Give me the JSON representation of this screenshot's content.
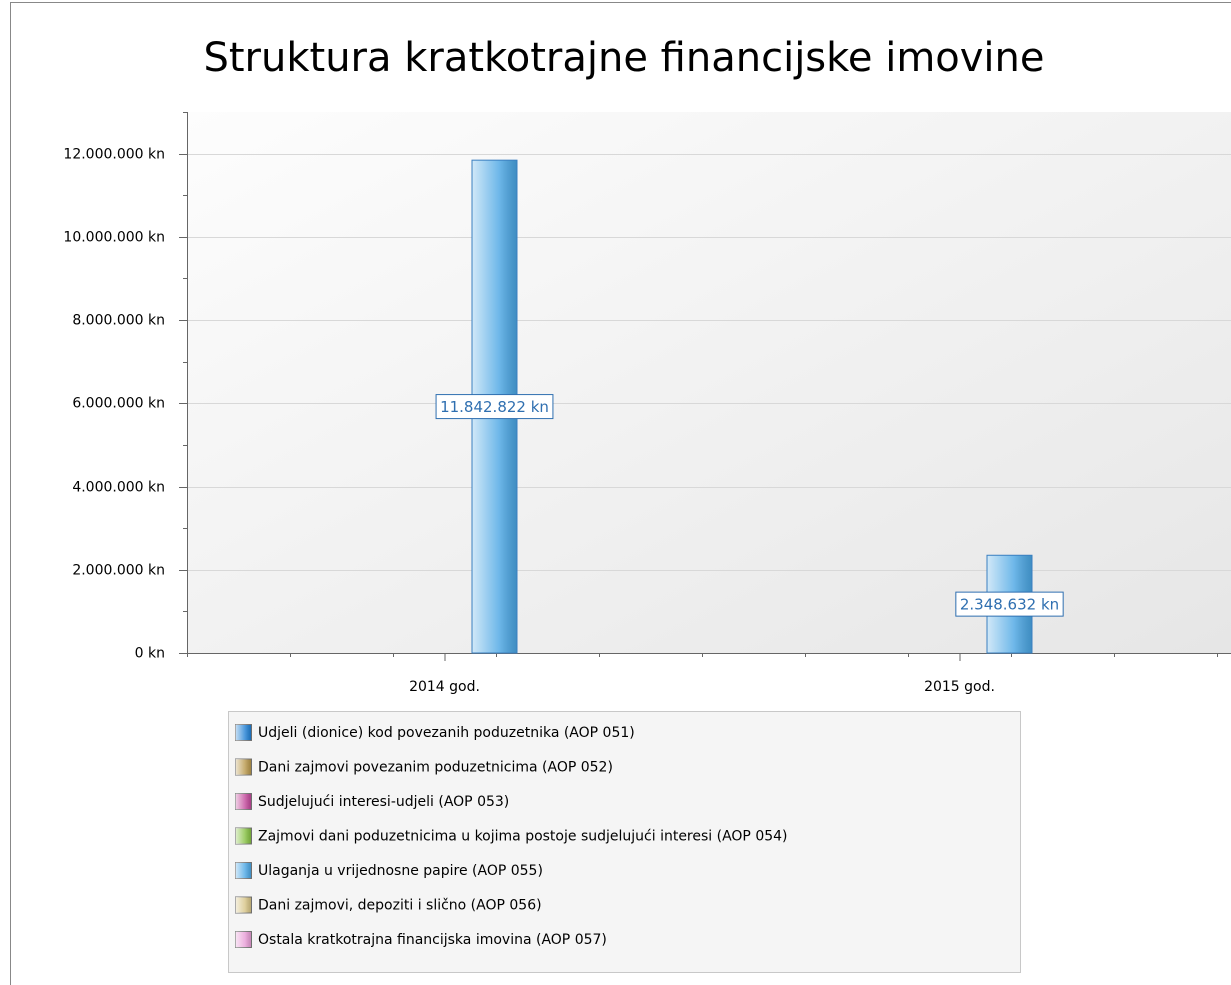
{
  "chart_data": {
    "type": "bar",
    "title": "Struktura kratkotrajne financijske imovine",
    "categories": [
      "2014 god.",
      "2015 god."
    ],
    "series": [
      {
        "name": "Udjeli (dionice) kod povezanih poduzetnika (AOP 051)",
        "color": "#1f7fd4",
        "values": [
          0,
          0
        ]
      },
      {
        "name": "Dani zajmovi povezanim poduzetnicima (AOP 052)",
        "color": "#b8974a",
        "values": [
          0,
          0
        ]
      },
      {
        "name": "Sudjelujući interesi-udjeli (AOP 053)",
        "color": "#c2479a",
        "values": [
          0,
          0
        ]
      },
      {
        "name": "Zajmovi dani poduzetnicima u kojima postoje sudjelujući interesi (AOP 054)",
        "color": "#84c040",
        "values": [
          0,
          0
        ]
      },
      {
        "name": "Ulaganja u vrijednosne papire (AOP 055)",
        "color": "#4aa6e4",
        "values": [
          11842822,
          2348632
        ],
        "value_labels": [
          "11.842.822 kn",
          "2.348.632 kn"
        ]
      },
      {
        "name": "Dani zajmovi, depoziti i slično (AOP 056)",
        "color": "#d6c384",
        "values": [
          0,
          0
        ]
      },
      {
        "name": "Ostala kratkotrajna financijska imovina (AOP 057)",
        "color": "#e89cd6",
        "values": [
          0,
          0
        ]
      }
    ],
    "ylim": [
      0,
      13000000
    ],
    "yticks": [
      {
        "value": 0,
        "label": "0 kn"
      },
      {
        "value": 2000000,
        "label": "2.000.000 kn"
      },
      {
        "value": 4000000,
        "label": "4.000.000 kn"
      },
      {
        "value": 6000000,
        "label": "6.000.000 kn"
      },
      {
        "value": 8000000,
        "label": "8.000.000 kn"
      },
      {
        "value": 10000000,
        "label": "10.000.000 kn"
      },
      {
        "value": 12000000,
        "label": "12.000.000 kn"
      }
    ],
    "grid": true
  }
}
